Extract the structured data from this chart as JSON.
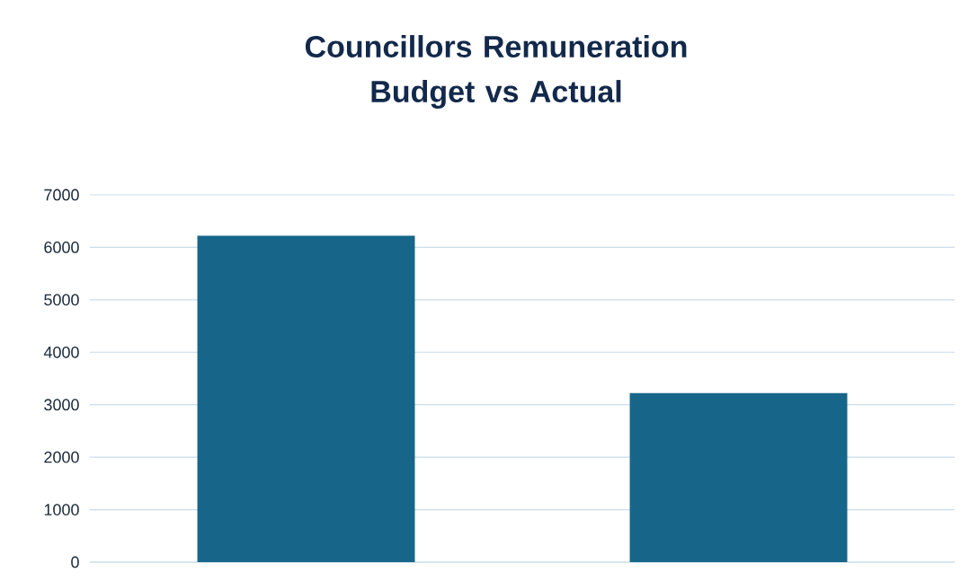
{
  "chart_data": {
    "type": "bar",
    "title": "Councillors Remuneration Budget vs Actual",
    "categories": [
      null,
      null
    ],
    "values": [
      6220,
      3220
    ],
    "color": "#17668a",
    "ylim": [
      0,
      7000
    ],
    "yticks": [
      0,
      1000,
      2000,
      3000,
      4000,
      5000,
      6000,
      7000
    ],
    "grid": "y"
  }
}
